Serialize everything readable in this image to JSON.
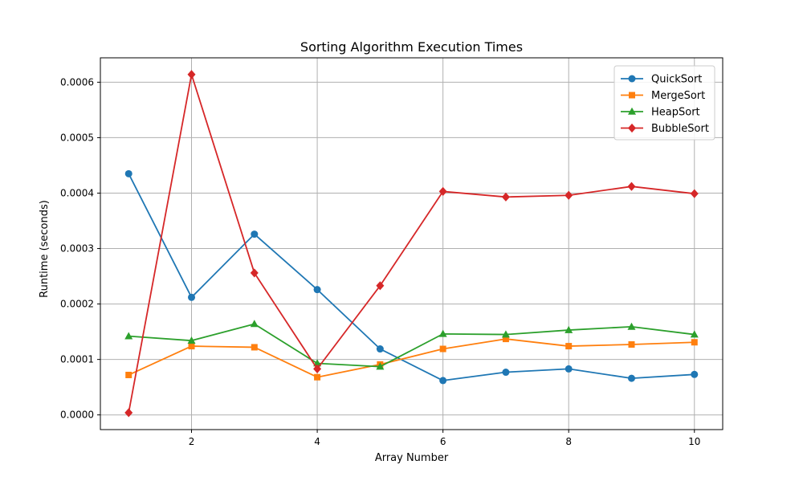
{
  "chart_data": {
    "type": "line",
    "title": "Sorting Algorithm Execution Times",
    "xlabel": "Array Number",
    "ylabel": "Runtime (seconds)",
    "xlim": [
      0.55,
      10.45
    ],
    "ylim": [
      -2.65e-05,
      0.000644
    ],
    "xticks": [
      2,
      4,
      6,
      8,
      10
    ],
    "xtick_labels": [
      "2",
      "4",
      "6",
      "8",
      "10"
    ],
    "yticks": [
      0,
      0.0001,
      0.0002,
      0.0003,
      0.0004,
      0.0005,
      0.0006
    ],
    "ytick_labels": [
      "0.0000",
      "0.0001",
      "0.0002",
      "0.0003",
      "0.0004",
      "0.0005",
      "0.0006"
    ],
    "grid": true,
    "legend_position": "top-right",
    "x": [
      1,
      2,
      3,
      4,
      5,
      6,
      7,
      8,
      9,
      10
    ],
    "series": [
      {
        "name": "QuickSort",
        "color": "#1f77b4",
        "marker": "circle",
        "values": [
          0.000435,
          0.000212,
          0.000326,
          0.000226,
          0.000119,
          6.2e-05,
          7.7e-05,
          8.3e-05,
          6.6e-05,
          7.3e-05
        ]
      },
      {
        "name": "MergeSort",
        "color": "#ff7f0e",
        "marker": "square",
        "values": [
          7.2e-05,
          0.000124,
          0.000122,
          6.8e-05,
          9.1e-05,
          0.000119,
          0.000137,
          0.000124,
          0.000127,
          0.000131
        ]
      },
      {
        "name": "HeapSort",
        "color": "#2ca02c",
        "marker": "triangle",
        "values": [
          0.000142,
          0.000134,
          0.000164,
          9.3e-05,
          8.7e-05,
          0.000146,
          0.000145,
          0.000153,
          0.000159,
          0.000145
        ]
      },
      {
        "name": "BubbleSort",
        "color": "#d62728",
        "marker": "diamond",
        "values": [
          4e-06,
          0.000614,
          0.000256,
          8.3e-05,
          0.000233,
          0.000403,
          0.000393,
          0.000396,
          0.000412,
          0.000399
        ]
      }
    ]
  }
}
